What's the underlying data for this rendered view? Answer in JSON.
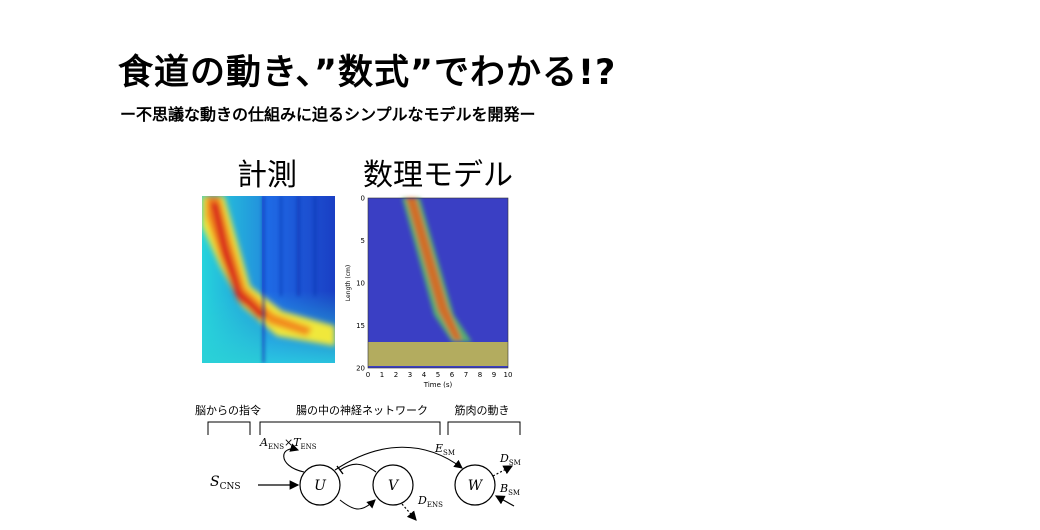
{
  "header": {
    "title": "食道の動き、”数式”でわかる!?",
    "subtitle": "ー不思議な動きの仕組みに迫るシンプルなモデルを開発ー"
  },
  "panels": {
    "measurement_label": "計測",
    "model_label": "数理モデル"
  },
  "model_plot": {
    "ylabel": "Length (cm)",
    "xlabel": "Time (s)",
    "y_ticks": [
      "0",
      "5",
      "10",
      "15",
      "20"
    ],
    "x_ticks": [
      "0",
      "1",
      "2",
      "3",
      "4",
      "5",
      "6",
      "7",
      "8",
      "9",
      "10"
    ]
  },
  "schematic": {
    "group_brain": "脳からの指令",
    "group_ens": "腸の中の神経ネットワーク",
    "group_muscle": "筋肉の動き",
    "input": "S",
    "input_sub": "CNS",
    "node_u": "U",
    "node_v": "V",
    "node_w": "W",
    "a_ens": "A",
    "a_ens_sub": "ENS",
    "times": "×",
    "t_ens": "T",
    "t_ens_sub": "ENS",
    "e_sm": "E",
    "e_sm_sub": "SM",
    "d_ens": "D",
    "d_ens_sub": "ENS",
    "d_sm": "D",
    "d_sm_sub": "SM",
    "b_sm": "B",
    "b_sm_sub": "SM"
  },
  "colors": {
    "model_bg": "#3a3fc4",
    "wave_core": "#e8641e",
    "wave_edge": "#57b86a",
    "measure_bg": "#1f4fd0",
    "measure_hot": "#d81e1e"
  }
}
